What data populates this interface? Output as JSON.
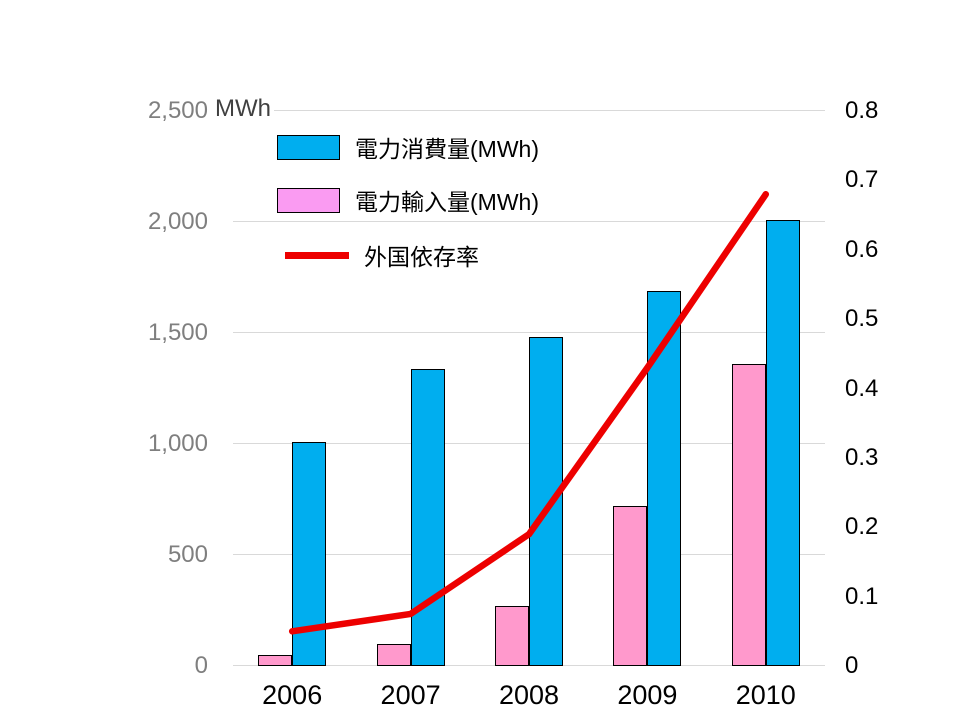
{
  "chart_data": {
    "type": "bar+line combo",
    "categories": [
      "2006",
      "2007",
      "2008",
      "2009",
      "2010"
    ],
    "series": [
      {
        "name": "電力消費量(MWh)",
        "type": "bar",
        "axis": "left",
        "color": "#00AEEF",
        "legend_swatch_color": "#00AEEF",
        "values": [
          1010,
          1340,
          1480,
          1690,
          2010
        ]
      },
      {
        "name": "電力輸入量(MWh)",
        "type": "bar",
        "axis": "left",
        "color": "#FF99CC",
        "legend_swatch_color": "#FA9BF2",
        "values": [
          50,
          100,
          270,
          720,
          1360
        ]
      },
      {
        "name": "外国依存率",
        "type": "line",
        "axis": "right",
        "color": "#ED0000",
        "legend_swatch_color": "#ED0000",
        "values": [
          0.05,
          0.075,
          0.19,
          0.43,
          0.68
        ]
      }
    ],
    "left_axis": {
      "unit_label": "MWh",
      "min": 0,
      "max": 2500,
      "step": 500,
      "tick_values": [
        0,
        500,
        1000,
        1500,
        2000,
        2500
      ],
      "tick_labels": [
        "0",
        "500",
        "1,000",
        "1,500",
        "2,000",
        "2,500"
      ],
      "tick_color": "#7F7F7F"
    },
    "right_axis": {
      "min": 0,
      "max": 0.8,
      "step": 0.1,
      "tick_values": [
        0,
        0.1,
        0.2,
        0.3,
        0.4,
        0.5,
        0.6,
        0.7,
        0.8
      ],
      "tick_labels": [
        "0",
        "0.1",
        "0.2",
        "0.3",
        "0.4",
        "0.5",
        "0.6",
        "0.7",
        "0.8"
      ],
      "tick_color": "#000000"
    },
    "grid": "horizontal",
    "grid_color": "#D9D9D9",
    "legend_position": "inside-top-left",
    "background_color": "#FFFFFF"
  }
}
